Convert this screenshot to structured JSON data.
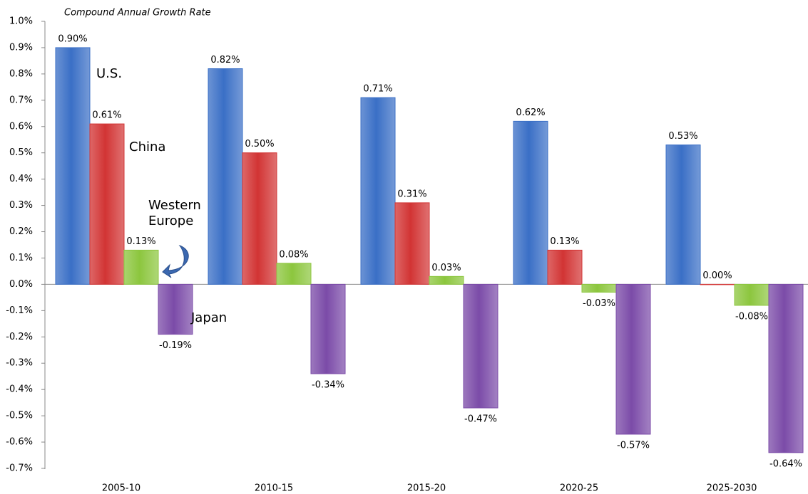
{
  "chart_data": {
    "type": "bar",
    "title": "Compound Annual Growth Rate",
    "categories": [
      "2005-10",
      "2010-15",
      "2015-20",
      "2020-25",
      "2025-2030"
    ],
    "series": [
      {
        "name": "U.S.",
        "color": "#3a6fc6",
        "values": [
          0.9,
          0.82,
          0.71,
          0.62,
          0.53
        ],
        "value_labels": [
          "0.90%",
          "0.82%",
          "0.71%",
          "0.62%",
          "0.53%"
        ]
      },
      {
        "name": "China",
        "color": "#d23434",
        "values": [
          0.61,
          0.5,
          0.31,
          0.13,
          0.0
        ],
        "value_labels": [
          "0.61%",
          "0.50%",
          "0.31%",
          "0.13%",
          "0.00%"
        ]
      },
      {
        "name": "Western Europe",
        "color": "#8cc63e",
        "values": [
          0.13,
          0.08,
          0.03,
          -0.03,
          -0.08
        ],
        "value_labels": [
          "0.13%",
          "0.08%",
          "0.03%",
          "-0.03%",
          "-0.08%"
        ]
      },
      {
        "name": "Japan",
        "color": "#7b4ba8",
        "values": [
          -0.19,
          -0.34,
          -0.47,
          -0.57,
          -0.64
        ],
        "value_labels": [
          "-0.19%",
          "-0.34%",
          "-0.47%",
          "-0.57%",
          "-0.64%"
        ]
      }
    ],
    "ylim": [
      -0.7,
      1.0
    ],
    "yticks": [
      {
        "value": -0.7,
        "label": "-0.7%"
      },
      {
        "value": -0.6,
        "label": "-0.6%"
      },
      {
        "value": -0.5,
        "label": "-0.5%"
      },
      {
        "value": -0.4,
        "label": "-0.4%"
      },
      {
        "value": -0.3,
        "label": "-0.3%"
      },
      {
        "value": -0.2,
        "label": "-0.2%"
      },
      {
        "value": -0.1,
        "label": "-0.1%"
      },
      {
        "value": 0.0,
        "label": "0.0%"
      },
      {
        "value": 0.1,
        "label": "0.1%"
      },
      {
        "value": 0.2,
        "label": "0.2%"
      },
      {
        "value": 0.3,
        "label": "0.3%"
      },
      {
        "value": 0.4,
        "label": "0.4%"
      },
      {
        "value": 0.5,
        "label": "0.5%"
      },
      {
        "value": 0.6,
        "label": "0.6%"
      },
      {
        "value": 0.7,
        "label": "0.7%"
      },
      {
        "value": 0.8,
        "label": "0.8%"
      },
      {
        "value": 0.9,
        "label": "0.9%"
      },
      {
        "value": 1.0,
        "label": "1.0%"
      }
    ],
    "grid": false
  }
}
